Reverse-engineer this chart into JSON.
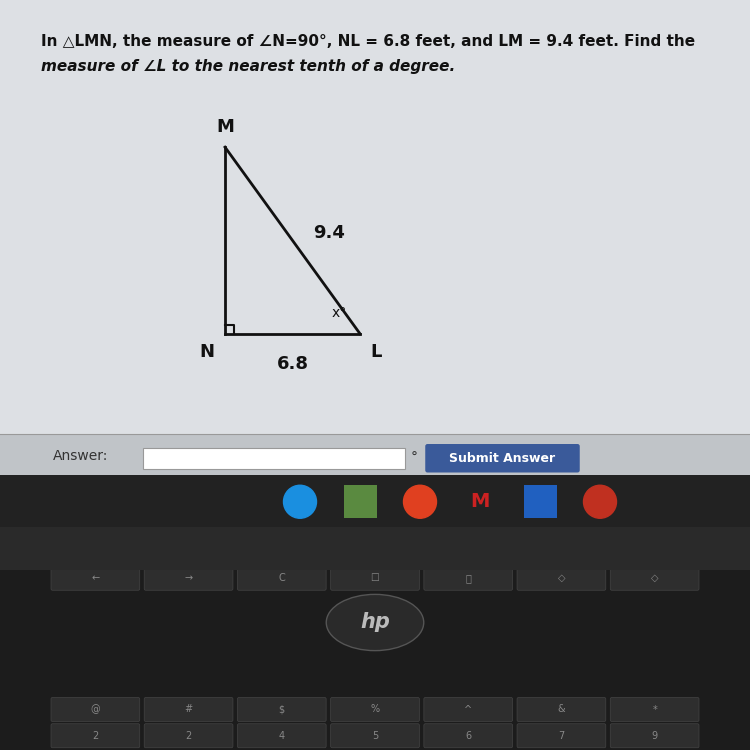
{
  "title_line1": "In △LMN, the measure of ∠N=90°, NL = 6.8 feet, and LM = 9.4 feet. Find the",
  "title_line2": "measure of ∠L to the nearest tenth of a degree.",
  "bg_color": "#c8c8c8",
  "screen_bg": "#dde0e4",
  "label_M": "M",
  "label_N": "N",
  "label_L": "L",
  "side_NL_label": "6.8",
  "side_LM_label": "9.4",
  "angle_L_label": "x°",
  "answer_label": "Answer:",
  "submit_label": "Submit Answer",
  "answer_box_color": "#ffffff",
  "submit_btn_color": "#3a5a9a",
  "submit_text_color": "#ffffff",
  "taskbar_color": "#222222",
  "keyboard_color": "#111111",
  "keyboard_top_color": "#333333"
}
